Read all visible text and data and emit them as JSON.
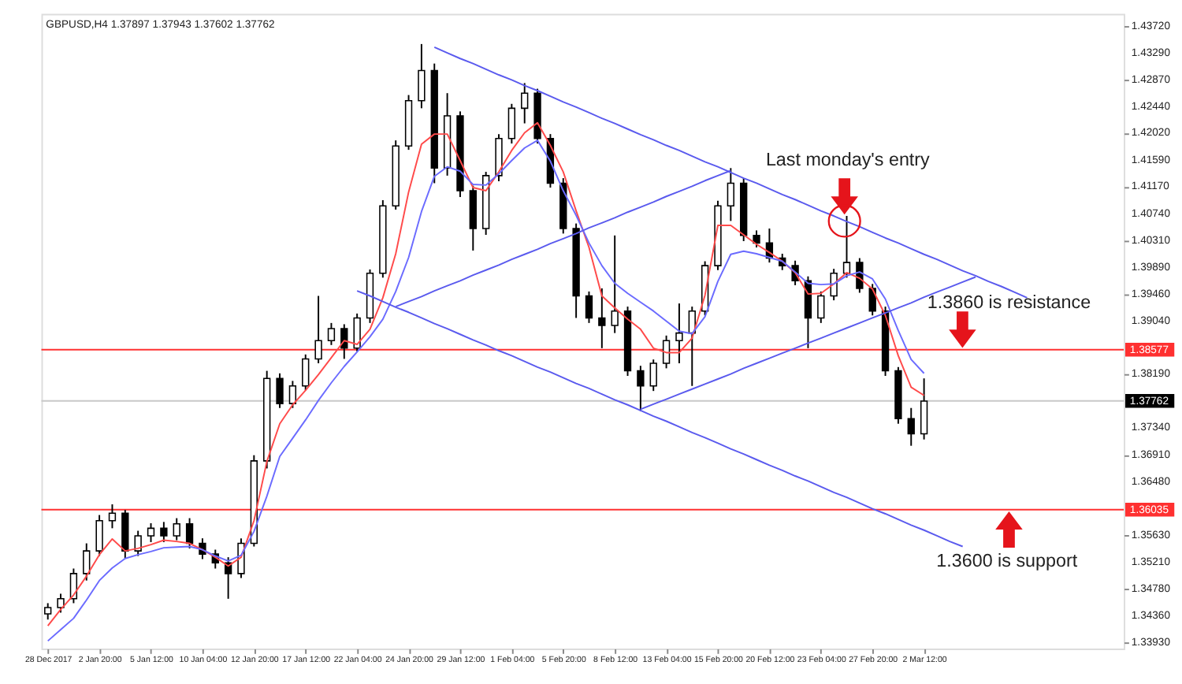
{
  "chart_data": {
    "type": "candlestick",
    "title": "GBPUSD,H4  1.37897 1.37943 1.37602 1.37762",
    "categories": [
      "28 Dec 2017",
      null,
      null,
      null,
      "2 Jan 20:00",
      null,
      null,
      null,
      "5 Jan 12:00",
      null,
      null,
      null,
      "10 Jan 04:00",
      null,
      null,
      null,
      "12 Jan 20:00",
      null,
      null,
      null,
      "17 Jan 12:00",
      null,
      null,
      null,
      "22 Jan 04:00",
      null,
      null,
      null,
      "24 Jan 20:00",
      null,
      null,
      null,
      "29 Jan 12:00",
      null,
      null,
      null,
      "1 Feb 04:00",
      null,
      null,
      null,
      "5 Feb 20:00",
      null,
      null,
      null,
      "8 Feb 12:00",
      null,
      null,
      null,
      "13 Feb 04:00",
      null,
      null,
      null,
      "15 Feb 20:00",
      null,
      null,
      null,
      "20 Feb 12:00",
      null,
      null,
      null,
      "23 Feb 04:00",
      null,
      null,
      null,
      "27 Feb 20:00",
      null,
      null,
      null,
      "2 Mar 12:00",
      null,
      null,
      null,
      null,
      null,
      null,
      null,
      null,
      null,
      null,
      null,
      null,
      null,
      null,
      null
    ],
    "ohlc": [
      [
        1.3438,
        1.3455,
        1.3429,
        1.3448
      ],
      [
        1.3448,
        1.347,
        1.344,
        1.3462
      ],
      [
        1.3462,
        1.351,
        1.3455,
        1.3502
      ],
      [
        1.3502,
        1.355,
        1.3491,
        1.3538
      ],
      [
        1.3538,
        1.3595,
        1.353,
        1.3586
      ],
      [
        1.3586,
        1.3612,
        1.3574,
        1.3598
      ],
      [
        1.3598,
        1.3603,
        1.3526,
        1.3538
      ],
      [
        1.3538,
        1.357,
        1.353,
        1.3562
      ],
      [
        1.3562,
        1.3582,
        1.3552,
        1.3574
      ],
      [
        1.3574,
        1.3584,
        1.3552,
        1.3562
      ],
      [
        1.3562,
        1.359,
        1.3555,
        1.3581
      ],
      [
        1.3581,
        1.359,
        1.3542,
        1.355
      ],
      [
        1.355,
        1.3558,
        1.3525,
        1.3533
      ],
      [
        1.3533,
        1.354,
        1.351,
        1.3519
      ],
      [
        1.3519,
        1.3528,
        1.3462,
        1.3502
      ],
      [
        1.3502,
        1.3558,
        1.3495,
        1.355
      ],
      [
        1.355,
        1.369,
        1.3545,
        1.3681
      ],
      [
        1.3681,
        1.3824,
        1.3669,
        1.3812
      ],
      [
        1.3812,
        1.382,
        1.3765,
        1.3772
      ],
      [
        1.3772,
        1.3808,
        1.3765,
        1.38
      ],
      [
        1.38,
        1.385,
        1.3793,
        1.3843
      ],
      [
        1.3843,
        1.3943,
        1.3836,
        1.3872
      ],
      [
        1.3872,
        1.39,
        1.3865,
        1.3891
      ],
      [
        1.3891,
        1.3898,
        1.3843,
        1.386
      ],
      [
        1.386,
        1.3915,
        1.3855,
        1.3908
      ],
      [
        1.3908,
        1.3985,
        1.39,
        1.3979
      ],
      [
        1.3979,
        1.4095,
        1.3972,
        1.4086
      ],
      [
        1.4086,
        1.419,
        1.408,
        1.4181
      ],
      [
        1.4181,
        1.4262,
        1.4175,
        1.4253
      ],
      [
        1.4253,
        1.4343,
        1.4241,
        1.4301
      ],
      [
        1.4301,
        1.4312,
        1.4122,
        1.4146
      ],
      [
        1.4146,
        1.4265,
        1.4134,
        1.4229
      ],
      [
        1.4229,
        1.4236,
        1.41,
        1.411
      ],
      [
        1.411,
        1.4118,
        1.4015,
        1.405
      ],
      [
        1.405,
        1.414,
        1.404,
        1.4134
      ],
      [
        1.4134,
        1.42,
        1.4125,
        1.4193
      ],
      [
        1.4193,
        1.4248,
        1.4185,
        1.4241
      ],
      [
        1.4241,
        1.4281,
        1.4217,
        1.4265
      ],
      [
        1.4265,
        1.4272,
        1.4185,
        1.4193
      ],
      [
        1.4193,
        1.42,
        1.4115,
        1.4122
      ],
      [
        1.4122,
        1.413,
        1.4042,
        1.405
      ],
      [
        1.405,
        1.4058,
        1.3908,
        1.3943
      ],
      [
        1.3943,
        1.395,
        1.39,
        1.3908
      ],
      [
        1.3908,
        1.3955,
        1.386,
        1.3896
      ],
      [
        1.3896,
        1.4039,
        1.3884,
        1.3919
      ],
      [
        1.3919,
        1.3926,
        1.3816,
        1.3824
      ],
      [
        1.3824,
        1.3832,
        1.376,
        1.38
      ],
      [
        1.38,
        1.3842,
        1.3792,
        1.3836
      ],
      [
        1.3836,
        1.388,
        1.3828,
        1.3872
      ],
      [
        1.3872,
        1.3931,
        1.3836,
        1.3884
      ],
      [
        1.3884,
        1.3926,
        1.38,
        1.3919
      ],
      [
        1.3919,
        1.3998,
        1.3912,
        1.3991
      ],
      [
        1.3991,
        1.4094,
        1.3984,
        1.4086
      ],
      [
        1.4086,
        1.4146,
        1.4062,
        1.4122
      ],
      [
        1.4122,
        1.413,
        1.403,
        1.4039
      ],
      [
        1.4039,
        1.4047,
        1.402,
        1.4027
      ],
      [
        1.4027,
        1.405,
        1.3996,
        1.4003
      ],
      [
        1.4003,
        1.401,
        1.3984,
        1.3991
      ],
      [
        1.3991,
        1.3999,
        1.396,
        1.3967
      ],
      [
        1.3967,
        1.3974,
        1.386,
        1.3908
      ],
      [
        1.3908,
        1.395,
        1.39,
        1.3943
      ],
      [
        1.3943,
        1.3986,
        1.3936,
        1.3979
      ],
      [
        1.3979,
        1.407,
        1.3972,
        1.3996
      ],
      [
        1.3996,
        1.4003,
        1.3948,
        1.3955
      ],
      [
        1.3955,
        1.3962,
        1.3912,
        1.3919
      ],
      [
        1.3919,
        1.3926,
        1.3816,
        1.3824
      ],
      [
        1.3824,
        1.383,
        1.374,
        1.3748
      ],
      [
        1.3748,
        1.3765,
        1.3705,
        1.3724
      ],
      [
        1.3724,
        1.3812,
        1.3715,
        1.3776
      ],
      null,
      null,
      null,
      null,
      null,
      null,
      null,
      null,
      null,
      null,
      null,
      null,
      null,
      null,
      null
    ],
    "series": [
      {
        "type": "line",
        "color": "#ff4a4a",
        "values": [
          1.3419,
          1.3445,
          1.3468,
          1.3498,
          1.3532,
          1.3557,
          1.3538,
          1.3542,
          1.3548,
          1.3555,
          1.3553,
          1.355,
          1.354,
          1.3528,
          1.3514,
          1.3528,
          1.3586,
          1.368,
          1.374,
          1.377,
          1.3793,
          1.3818,
          1.3845,
          1.3872,
          1.3866,
          1.389,
          1.394,
          1.401,
          1.4108,
          1.4184,
          1.42,
          1.42,
          1.4158,
          1.4115,
          1.411,
          1.414,
          1.4174,
          1.4202,
          1.4218,
          1.4182,
          1.414,
          1.4078,
          1.402,
          1.3943,
          1.3924,
          1.3906,
          1.389,
          1.386,
          1.3853,
          1.3853,
          1.3876,
          1.3944,
          1.4055,
          1.4055,
          1.404,
          1.4025,
          1.4012,
          1.3998,
          1.398,
          1.3946,
          1.3947,
          1.3962,
          1.398,
          1.3971,
          1.3954,
          1.3912,
          1.3848,
          1.3798,
          1.3785,
          null,
          null,
          null,
          null,
          null,
          null,
          null,
          null,
          null,
          null,
          null,
          null,
          null,
          null,
          null
        ]
      },
      {
        "type": "line",
        "color": "#6b6bff",
        "values": [
          1.3395,
          1.3413,
          1.3431,
          1.346,
          1.3491,
          1.3511,
          1.3526,
          1.3532,
          1.3537,
          1.3543,
          1.3544,
          1.3545,
          1.354,
          1.353,
          1.3522,
          1.3531,
          1.3569,
          1.3625,
          1.3688,
          1.3717,
          1.3746,
          1.3777,
          1.3805,
          1.3831,
          1.3854,
          1.3878,
          1.3906,
          1.395,
          1.4004,
          1.4077,
          1.4133,
          1.4148,
          1.4141,
          1.412,
          1.4119,
          1.4137,
          1.4158,
          1.4178,
          1.419,
          1.4157,
          1.411,
          1.4071,
          1.4027,
          1.3991,
          1.3963,
          1.3947,
          1.3933,
          1.3919,
          1.3903,
          1.3887,
          1.3883,
          1.391,
          1.3966,
          1.4009,
          1.4014,
          1.401,
          1.4004,
          1.3998,
          1.3981,
          1.3963,
          1.3961,
          1.3962,
          1.3975,
          1.3981,
          1.397,
          1.3938,
          1.3888,
          1.3842,
          1.382,
          null,
          null,
          null,
          null,
          null,
          null,
          null,
          null,
          null,
          null,
          null,
          null,
          null,
          null,
          null
        ]
      },
      {
        "type": "line",
        "color": "#5a5aee",
        "values": [
          null,
          null,
          null,
          null,
          null,
          null,
          null,
          null,
          null,
          null,
          null,
          null,
          null,
          null,
          null,
          null,
          null,
          null,
          null,
          null,
          null,
          null,
          null,
          null,
          null,
          null,
          null,
          null,
          null,
          null,
          1.4338,
          1.4329,
          1.432,
          1.4312,
          1.4303,
          1.4294,
          1.4286,
          1.4277,
          1.4269,
          1.426,
          1.4251,
          1.4243,
          1.4234,
          1.4225,
          1.4217,
          1.4208,
          1.4199,
          1.4191,
          1.4182,
          1.4174,
          1.4165,
          1.4156,
          1.4148,
          1.4139,
          1.413,
          1.4122,
          1.4113,
          1.4104,
          1.4096,
          1.4087,
          1.4078,
          1.407,
          1.4061,
          1.4053,
          1.4044,
          1.4035,
          1.4027,
          1.4018,
          1.4009,
          1.4001,
          1.3992,
          1.3983,
          1.3975,
          1.3966,
          1.3958,
          1.3949,
          1.394,
          null,
          null,
          null,
          null,
          null,
          null,
          null
        ]
      },
      {
        "type": "line",
        "color": "#5a5aee",
        "values": [
          null,
          null,
          null,
          null,
          null,
          null,
          null,
          null,
          null,
          null,
          null,
          null,
          null,
          null,
          null,
          null,
          null,
          null,
          null,
          null,
          null,
          null,
          null,
          null,
          1.3951,
          1.3943,
          1.3934,
          1.3925,
          1.3917,
          1.3908,
          1.3899,
          1.3891,
          1.3882,
          1.3873,
          1.3865,
          1.3856,
          1.3848,
          1.3839,
          1.383,
          1.3822,
          1.3813,
          1.3804,
          1.3796,
          1.3787,
          1.3778,
          1.377,
          1.3761,
          1.3752,
          1.3744,
          1.3735,
          1.3726,
          1.3718,
          1.3709,
          1.37,
          1.3692,
          1.3683,
          1.3674,
          1.3666,
          1.3657,
          1.3649,
          1.364,
          1.3631,
          1.3623,
          1.3614,
          1.3605,
          1.3597,
          1.3588,
          1.3579,
          1.3571,
          1.3562,
          1.3553,
          1.3545,
          null,
          null,
          null,
          null,
          null,
          null,
          null,
          null,
          null,
          null,
          null,
          null
        ]
      },
      {
        "type": "line",
        "color": "#5a5aee",
        "values": [
          null,
          null,
          null,
          null,
          null,
          null,
          null,
          null,
          null,
          null,
          null,
          null,
          null,
          null,
          null,
          null,
          null,
          null,
          null,
          null,
          null,
          null,
          null,
          null,
          null,
          null,
          null,
          1.3926,
          1.3934,
          1.3942,
          1.3951,
          1.3959,
          1.3967,
          1.3976,
          1.3984,
          1.3992,
          1.4001,
          1.4009,
          1.4017,
          1.4026,
          1.4034,
          1.4042,
          1.4051,
          1.4059,
          1.4067,
          1.4076,
          1.4084,
          1.4092,
          1.4101,
          1.4109,
          1.4117,
          1.4126,
          1.4134,
          1.4142,
          null,
          null,
          null,
          null,
          null,
          null,
          null,
          null,
          null,
          null,
          null,
          null,
          null,
          null,
          null,
          null,
          null,
          null,
          null,
          null,
          null,
          null,
          null,
          null,
          null,
          null,
          null,
          null,
          null,
          null
        ]
      },
      {
        "type": "line",
        "color": "#5a5aee",
        "values": [
          null,
          null,
          null,
          null,
          null,
          null,
          null,
          null,
          null,
          null,
          null,
          null,
          null,
          null,
          null,
          null,
          null,
          null,
          null,
          null,
          null,
          null,
          null,
          null,
          null,
          null,
          null,
          null,
          null,
          null,
          null,
          null,
          null,
          null,
          null,
          null,
          null,
          null,
          null,
          null,
          null,
          null,
          null,
          null,
          null,
          null,
          1.3763,
          1.3771,
          1.3779,
          1.3787,
          1.3795,
          1.3803,
          1.3811,
          1.3819,
          1.3828,
          1.3836,
          1.3844,
          1.3852,
          1.386,
          1.3868,
          1.3876,
          1.3884,
          1.3892,
          1.39,
          1.3908,
          1.3916,
          1.3924,
          1.3932,
          1.3941,
          1.3949,
          1.3957,
          1.3965,
          1.3973,
          null,
          null,
          null,
          null,
          null,
          null,
          null,
          null,
          null,
          null,
          null
        ]
      }
    ],
    "ylim": [
      1.3383,
      1.4391
    ],
    "yticks": [
      {
        "value": 1.4372,
        "label": "1.43720"
      },
      {
        "value": 1.4329,
        "label": "1.43290"
      },
      {
        "value": 1.4287,
        "label": "1.42870"
      },
      {
        "value": 1.4244,
        "label": "1.42440"
      },
      {
        "value": 1.4202,
        "label": "1.42020"
      },
      {
        "value": 1.4159,
        "label": "1.41590"
      },
      {
        "value": 1.4117,
        "label": "1.41170"
      },
      {
        "value": 1.4074,
        "label": "1.40740"
      },
      {
        "value": 1.4031,
        "label": "1.40310"
      },
      {
        "value": 1.3989,
        "label": "1.39890"
      },
      {
        "value": 1.3946,
        "label": "1.39460"
      },
      {
        "value": 1.3904,
        "label": "1.39040"
      },
      {
        "value": 1.3819,
        "label": "1.38190"
      },
      {
        "value": 1.3734,
        "label": "1.37340"
      },
      {
        "value": 1.3691,
        "label": "1.36910"
      },
      {
        "value": 1.3648,
        "label": "1.36480"
      },
      {
        "value": 1.3563,
        "label": "1.35630"
      },
      {
        "value": 1.3521,
        "label": "1.35210"
      },
      {
        "value": 1.3478,
        "label": "1.34780"
      },
      {
        "value": 1.3436,
        "label": "1.34360"
      },
      {
        "value": 1.3393,
        "label": "1.33930"
      }
    ],
    "ref_lines": [
      {
        "axis": "y",
        "value": 1.38577,
        "label": "1.38577",
        "color": "#ff3030"
      },
      {
        "axis": "y",
        "value": 1.37762,
        "label": "1.37762",
        "color": "#c8c8c8"
      },
      {
        "axis": "y",
        "value": 1.36035,
        "label": "1.36035",
        "color": "#ff3030"
      }
    ],
    "annotations": [
      {
        "text": "Last monday's entry",
        "y": 1.4062
      },
      {
        "text": "1.3860 is resistance",
        "y": 1.38577
      },
      {
        "text": "1.3600 is support",
        "y": 1.36035
      }
    ]
  }
}
